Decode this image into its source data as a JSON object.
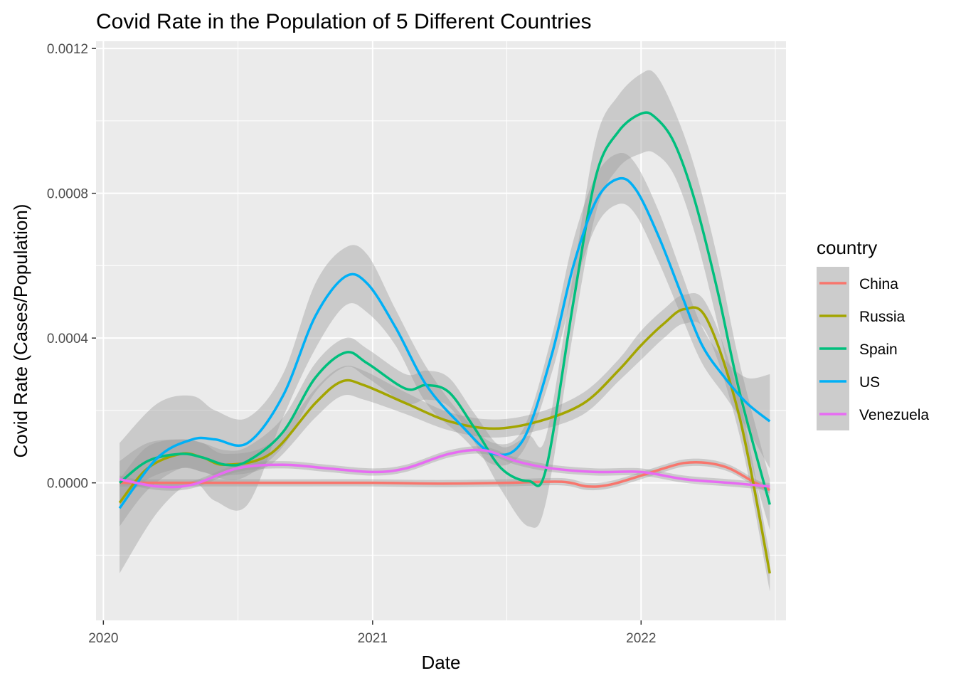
{
  "chart_data": {
    "type": "line",
    "title": "Covid Rate in the Population of 5 Different Countries",
    "xlabel": "Date",
    "ylabel": "Covid Rate (Cases/Population)",
    "xlim": [
      "2019-12-22",
      "2022-07-17"
    ],
    "ylim": [
      -0.00038,
      0.00122
    ],
    "x_ticks": [
      "2020-01-01",
      "2021-01-01",
      "2022-01-01"
    ],
    "x_tick_labels": [
      "2020",
      "2021",
      "2022"
    ],
    "y_ticks": [
      0,
      0.0004,
      0.0008,
      0.0012
    ],
    "y_tick_labels": [
      "0.0000",
      "0.0004",
      "0.0008",
      "0.0012"
    ],
    "grid": true,
    "legend": {
      "title": "country",
      "position": "right"
    },
    "confidence_band": true,
    "series": [
      {
        "name": "China",
        "color": "#F8766D",
        "x": [
          "2020-01-23",
          "2020-04-01",
          "2020-07-01",
          "2020-10-01",
          "2021-01-01",
          "2021-04-01",
          "2021-07-01",
          "2021-09-15",
          "2021-10-20",
          "2021-11-20",
          "2022-01-01",
          "2022-02-01",
          "2022-03-01",
          "2022-04-01",
          "2022-05-01",
          "2022-06-01",
          "2022-06-25"
        ],
        "y": [
          0.0,
          0.0,
          0.0,
          0.0,
          0.0,
          -2e-06,
          0.0,
          3e-06,
          -1e-05,
          -5e-06,
          2e-05,
          4e-05,
          5.5e-05,
          5.5e-05,
          4e-05,
          5e-06,
          -2e-05
        ],
        "lower": [
          -1e-05,
          -1e-05,
          -1e-05,
          -1e-05,
          -1e-05,
          -1.2e-05,
          -1e-05,
          -7e-06,
          -2e-05,
          -1.5e-05,
          1e-05,
          3e-05,
          4.5e-05,
          4.5e-05,
          3e-05,
          -5e-06,
          -3e-05
        ],
        "upper": [
          1e-05,
          1e-05,
          1e-05,
          1e-05,
          1e-05,
          8e-06,
          1e-05,
          1.3e-05,
          0.0,
          5e-06,
          3e-05,
          5e-05,
          6.5e-05,
          6.5e-05,
          5e-05,
          1.5e-05,
          -1e-05
        ]
      },
      {
        "name": "Russia",
        "color": "#A3A500",
        "x": [
          "2020-01-23",
          "2020-03-01",
          "2020-04-15",
          "2020-05-15",
          "2020-06-15",
          "2020-08-15",
          "2020-10-15",
          "2020-11-20",
          "2020-12-20",
          "2021-02-15",
          "2021-04-15",
          "2021-06-15",
          "2021-08-15",
          "2021-10-15",
          "2021-12-01",
          "2022-01-01",
          "2022-02-01",
          "2022-03-01",
          "2022-04-01",
          "2022-05-15",
          "2022-06-25"
        ],
        "y": [
          -5.5e-05,
          4e-05,
          8e-05,
          7e-05,
          5e-05,
          8e-05,
          0.00022,
          0.00028,
          0.00027,
          0.00022,
          0.00017,
          0.00015,
          0.00017,
          0.00022,
          0.00031,
          0.00038,
          0.00044,
          0.00048,
          0.00045,
          0.00018,
          -0.00025
        ],
        "lower": [
          -0.00012,
          -2e-05,
          4e-05,
          3e-05,
          2e-05,
          5e-05,
          0.00018,
          0.00024,
          0.00023,
          0.00019,
          0.000145,
          0.000125,
          0.000145,
          0.00019,
          0.00028,
          0.00034,
          0.0004,
          0.00044,
          0.00041,
          0.00013,
          -0.0003
        ],
        "upper": [
          1e-05,
          0.0001,
          0.00012,
          0.00011,
          8e-05,
          0.00011,
          0.00026,
          0.00032,
          0.00031,
          0.00025,
          0.000195,
          0.000175,
          0.000195,
          0.00025,
          0.00034,
          0.00042,
          0.00048,
          0.00052,
          0.00049,
          0.00023,
          -0.0002
        ]
      },
      {
        "name": "Spain",
        "color": "#00BF7D",
        "x": [
          "2020-01-23",
          "2020-03-01",
          "2020-04-15",
          "2020-05-15",
          "2020-06-15",
          "2020-07-15",
          "2020-09-01",
          "2020-10-15",
          "2020-11-25",
          "2020-12-25",
          "2021-02-15",
          "2021-03-15",
          "2021-04-15",
          "2021-05-20",
          "2021-06-25",
          "2021-08-01",
          "2021-08-25",
          "2021-10-01",
          "2021-11-01",
          "2021-12-01",
          "2022-01-01",
          "2022-01-20",
          "2022-02-15",
          "2022-03-15",
          "2022-04-15",
          "2022-05-15",
          "2022-06-25"
        ],
        "y": [
          0.0,
          6e-05,
          8e-05,
          7e-05,
          5e-05,
          6e-05,
          0.00014,
          0.00029,
          0.00036,
          0.00033,
          0.00026,
          0.00027,
          0.00025,
          0.00015,
          4e-05,
          5e-06,
          4e-05,
          0.0005,
          0.00085,
          0.00097,
          0.00102,
          0.00101,
          0.00094,
          0.00078,
          0.00053,
          0.00025,
          -6e-05
        ],
        "lower": [
          -6e-05,
          1e-05,
          4e-05,
          3e-05,
          1e-05,
          2e-05,
          0.0001,
          0.00025,
          0.00032,
          0.00029,
          0.00022,
          0.00023,
          0.00021,
          0.00011,
          -2e-05,
          -0.00012,
          -5e-05,
          0.00042,
          0.00075,
          0.00087,
          0.00091,
          0.00091,
          0.00085,
          0.00069,
          0.00044,
          0.00017,
          -0.00013
        ],
        "upper": [
          6e-05,
          0.00011,
          0.00012,
          0.00011,
          9e-05,
          0.0001,
          0.00018,
          0.00033,
          0.0004,
          0.00037,
          0.0003,
          0.00031,
          0.00029,
          0.00019,
          0.0001,
          0.00013,
          0.00013,
          0.00058,
          0.00095,
          0.00107,
          0.00113,
          0.00113,
          0.00103,
          0.00087,
          0.00062,
          0.00033,
          1e-05
        ]
      },
      {
        "name": "US",
        "color": "#00B0F6",
        "x": [
          "2020-01-23",
          "2020-03-15",
          "2020-05-01",
          "2020-06-01",
          "2020-07-15",
          "2020-09-01",
          "2020-10-15",
          "2020-11-25",
          "2020-12-25",
          "2021-02-01",
          "2021-03-15",
          "2021-05-01",
          "2021-06-15",
          "2021-07-25",
          "2021-09-01",
          "2021-10-01",
          "2021-11-01",
          "2021-12-01",
          "2021-12-25",
          "2022-01-25",
          "2022-02-25",
          "2022-03-25",
          "2022-04-25",
          "2022-05-25",
          "2022-06-25"
        ],
        "y": [
          -7e-05,
          7e-05,
          0.00012,
          0.00012,
          0.00011,
          0.00024,
          0.00046,
          0.00057,
          0.00055,
          0.00043,
          0.00027,
          0.00016,
          8e-05,
          0.00012,
          0.00035,
          0.0006,
          0.00078,
          0.00084,
          0.00081,
          0.00068,
          0.00052,
          0.00038,
          0.00029,
          0.00022,
          0.00017
        ],
        "lower": [
          -0.00025,
          -8e-05,
          0.0,
          -5e-05,
          -6e-05,
          0.00018,
          0.00037,
          0.00049,
          0.00047,
          0.00038,
          0.00022,
          0.00013,
          5e-05,
          9e-05,
          0.0003,
          0.00053,
          0.00071,
          0.00077,
          0.00074,
          0.00061,
          0.00046,
          0.00033,
          0.00024,
          0.00015,
          4e-05
        ],
        "upper": [
          0.00011,
          0.00022,
          0.00024,
          0.0002,
          0.00018,
          0.0003,
          0.00055,
          0.00065,
          0.00063,
          0.00048,
          0.00032,
          0.00019,
          0.00011,
          0.00015,
          0.0004,
          0.00067,
          0.00085,
          0.00091,
          0.00088,
          0.00075,
          0.00058,
          0.00043,
          0.00034,
          0.00029,
          0.0003
        ]
      },
      {
        "name": "Venezuela",
        "color": "#E76BF3",
        "x": [
          "2020-01-23",
          "2020-03-15",
          "2020-05-01",
          "2020-07-01",
          "2020-09-01",
          "2020-11-01",
          "2021-01-01",
          "2021-02-15",
          "2021-04-15",
          "2021-06-01",
          "2021-07-15",
          "2021-09-01",
          "2021-11-01",
          "2022-01-01",
          "2022-03-01",
          "2022-05-01",
          "2022-06-25"
        ],
        "y": [
          1e-05,
          -1e-05,
          -5e-06,
          4e-05,
          5e-05,
          4e-05,
          3e-05,
          4e-05,
          8e-05,
          9e-05,
          6e-05,
          4e-05,
          3e-05,
          3e-05,
          1e-05,
          0.0,
          -1e-05
        ],
        "lower": [
          0.0,
          -2e-05,
          -1.5e-05,
          3e-05,
          4e-05,
          3e-05,
          2e-05,
          3e-05,
          7e-05,
          8e-05,
          5e-05,
          3e-05,
          2e-05,
          2e-05,
          0.0,
          -1e-05,
          -2e-05
        ],
        "upper": [
          2e-05,
          0.0,
          5e-06,
          5e-05,
          6e-05,
          5e-05,
          4e-05,
          5e-05,
          9e-05,
          0.0001,
          7e-05,
          5e-05,
          4e-05,
          4e-05,
          2e-05,
          1e-05,
          0.0
        ]
      }
    ]
  }
}
